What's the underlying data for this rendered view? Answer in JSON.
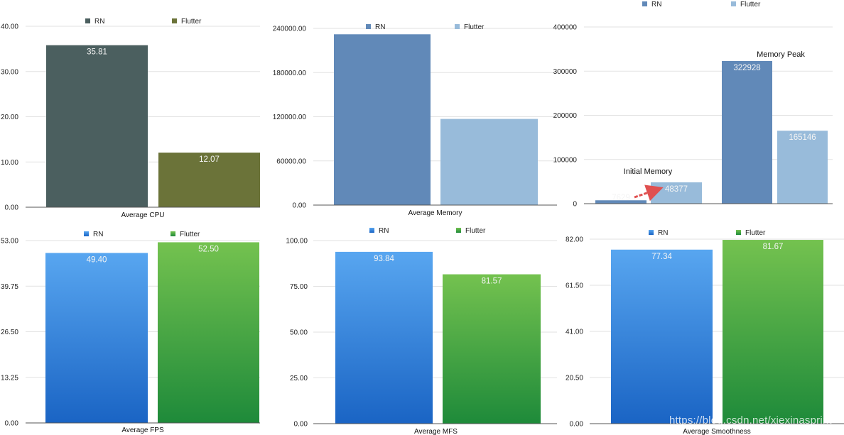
{
  "colors": {
    "cpu_rn": "#4b5f5f",
    "cpu_flutter": "#6b7339",
    "mem_rn": "#6189b8",
    "mem_flutter": "#98bbda",
    "blue_top": "#58a6f0",
    "blue_bottom": "#1a64c4",
    "green_top": "#74c24f",
    "green_bottom": "#1e8a3a",
    "arrow": "#e05050"
  },
  "watermark": "https://blog.csdn.net/xiexinasprint",
  "chart_data": [
    {
      "id": "cpu",
      "type": "bar",
      "xlabel": "Average CPU",
      "legend": [
        "RN",
        "Flutter"
      ],
      "categories": [
        "RN",
        "Flutter"
      ],
      "values": [
        35.81,
        12.07
      ],
      "value_labels": [
        "35.81",
        "12.07"
      ],
      "ylim": [
        0,
        40
      ],
      "ticks": [
        0,
        10,
        20,
        30,
        40
      ],
      "tick_labels": [
        "0.00",
        "10.00",
        "20.00",
        "30.00",
        "40.00"
      ],
      "fill": [
        "solid",
        "cpu"
      ]
    },
    {
      "id": "memory",
      "type": "bar",
      "xlabel": "Average Memory",
      "legend": [
        "RN",
        "Flutter"
      ],
      "categories": [
        "RN",
        "Flutter"
      ],
      "values": [
        232000,
        117000
      ],
      "value_labels": [
        "",
        ""
      ],
      "ylim": [
        0,
        240000
      ],
      "ticks": [
        0,
        60000,
        120000,
        180000,
        240000
      ],
      "tick_labels": [
        "0.00",
        "60000.00",
        "120000.00",
        "180000.00",
        "240000.00"
      ],
      "fill": [
        "solid",
        "mem"
      ]
    },
    {
      "id": "memory_peak",
      "type": "bar",
      "xlabel": "",
      "legend": [
        "RN",
        "Flutter"
      ],
      "groups": [
        "Initial Memory",
        "Memory Peak"
      ],
      "series": [
        {
          "name": "RN",
          "values": [
            7629,
            322928
          ],
          "value_labels": [
            "7629",
            "322928"
          ]
        },
        {
          "name": "Flutter",
          "values": [
            48377,
            165146
          ],
          "value_labels": [
            "48377",
            "165146"
          ]
        }
      ],
      "ylim": [
        0,
        400000
      ],
      "ticks": [
        0,
        100000,
        200000,
        300000,
        400000
      ],
      "tick_labels": [
        "0",
        "100000",
        "200000",
        "300000",
        "400000"
      ],
      "annotations": [
        "Initial Memory",
        "Memory Peak"
      ]
    },
    {
      "id": "fps",
      "type": "bar",
      "xlabel": "Average  FPS",
      "legend": [
        "RN",
        "Flutter"
      ],
      "categories": [
        "RN",
        "Flutter"
      ],
      "values": [
        49.4,
        52.5
      ],
      "value_labels": [
        "49.40",
        "52.50"
      ],
      "ylim": [
        0,
        53
      ],
      "ticks": [
        0,
        13.25,
        26.5,
        39.75,
        53
      ],
      "tick_labels": [
        "0.00",
        "13.25",
        "26.50",
        "39.75",
        "53.00"
      ],
      "fill": [
        "gradient",
        "bluegreen"
      ]
    },
    {
      "id": "mfs",
      "type": "bar",
      "xlabel": "Average MFS",
      "legend": [
        "RN",
        "Flutter"
      ],
      "categories": [
        "RN",
        "Flutter"
      ],
      "values": [
        93.84,
        81.57
      ],
      "value_labels": [
        "93.84",
        "81.57"
      ],
      "ylim": [
        0,
        100
      ],
      "ticks": [
        0,
        25,
        50,
        75,
        100
      ],
      "tick_labels": [
        "0.00",
        "25.00",
        "50.00",
        "75.00",
        "100.00"
      ],
      "fill": [
        "gradient",
        "bluegreen"
      ]
    },
    {
      "id": "smoothness",
      "type": "bar",
      "xlabel": "Average Smoothness",
      "legend": [
        "RN",
        "Flutter"
      ],
      "categories": [
        "RN",
        "Flutter"
      ],
      "values": [
        77.34,
        81.67
      ],
      "value_labels": [
        "77.34",
        "81.67"
      ],
      "ylim": [
        0,
        82
      ],
      "ticks": [
        0,
        20.5,
        41,
        61.5,
        82
      ],
      "tick_labels": [
        "0.00",
        "20.50",
        "41.00",
        "61.50",
        "82.00"
      ],
      "fill": [
        "gradient",
        "bluegreen"
      ]
    }
  ]
}
